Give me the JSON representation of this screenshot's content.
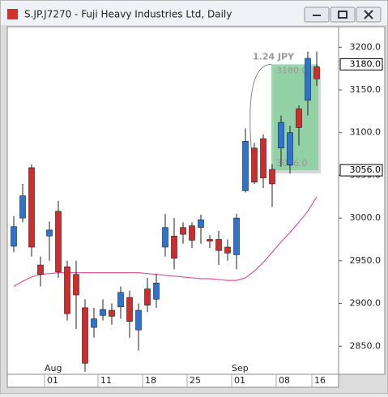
{
  "window": {
    "title": "S.JP.J7270 - Fuji Heavy Industries Ltd, Daily"
  },
  "chart_data": {
    "type": "candlestick",
    "categories": [
      null,
      null,
      null,
      null,
      "01",
      null,
      null,
      null,
      null,
      null,
      "11",
      null,
      null,
      null,
      null,
      "18",
      null,
      null,
      null,
      null,
      "25",
      null,
      null,
      null,
      null,
      "01",
      null,
      null,
      null,
      null,
      "08",
      null,
      null,
      null,
      "16"
    ],
    "months": [
      null,
      null,
      null,
      null,
      "Aug",
      null,
      null,
      null,
      null,
      null,
      null,
      null,
      null,
      null,
      null,
      null,
      null,
      null,
      null,
      null,
      null,
      null,
      null,
      null,
      null,
      "Sep",
      null,
      null,
      null,
      null,
      null,
      null,
      null,
      null,
      null
    ],
    "open": [
      2967,
      3000,
      3059,
      2945,
      2979,
      3008,
      2943,
      2934,
      2895,
      2872,
      2886,
      2892,
      2896,
      2907,
      2869,
      2917,
      2905,
      2966,
      2979,
      2989,
      2991,
      2989,
      2975,
      2975,
      2966,
      2957,
      3032,
      3082,
      3093,
      3057,
      3082,
      3062,
      3128,
      3138,
      3177
    ],
    "high": [
      3002,
      3040,
      3063,
      2955,
      2996,
      3020,
      2950,
      2950,
      2905,
      2895,
      2905,
      2900,
      2920,
      2915,
      2900,
      2930,
      2935,
      3005,
      3000,
      2995,
      2995,
      3004,
      2980,
      2985,
      2975,
      3005,
      3105,
      3088,
      3098,
      3063,
      3120,
      3108,
      3132,
      3195,
      3195
    ],
    "low": [
      2960,
      2995,
      2955,
      2920,
      2950,
      2930,
      2880,
      2870,
      2820,
      2860,
      2880,
      2875,
      2882,
      2860,
      2845,
      2890,
      2895,
      2955,
      2940,
      2970,
      2965,
      2970,
      2965,
      2945,
      2950,
      2940,
      3030,
      3040,
      3035,
      3013,
      3060,
      3052,
      3085,
      3120,
      3155
    ],
    "close": [
      2990,
      3026,
      2966,
      2934,
      2986,
      2937,
      2888,
      2910,
      2830,
      2882,
      2893,
      2885,
      2913,
      2879,
      2892,
      2898,
      2924,
      2989,
      2953,
      2981,
      2974,
      2998,
      2973,
      2962,
      2959,
      3000,
      3090,
      3042,
      3047,
      3040,
      3112,
      3100,
      3106,
      3187,
      3163
    ],
    "up_color": "#2a74d6",
    "down_color": "#d42a2a",
    "moving_average": {
      "color": "#e0559a",
      "values": [
        2920,
        2926,
        2931,
        2934,
        2935,
        2936,
        2936,
        2936,
        2936,
        2936,
        2936,
        2936,
        2936,
        2936,
        2936,
        2935,
        2934,
        2933,
        2932,
        2931,
        2930,
        2929,
        2929,
        2928,
        2927,
        2927,
        2930,
        2938,
        2948,
        2960,
        2972,
        2983,
        2995,
        3008,
        3025
      ]
    },
    "ylim": [
      2818,
      3224
    ],
    "yticks": [
      {
        "value": 2850,
        "label": "2850.0"
      },
      {
        "value": 2900,
        "label": "2900.0"
      },
      {
        "value": 2950,
        "label": "2950.0"
      },
      {
        "value": 3000,
        "label": "3000.0"
      },
      {
        "value": 3050,
        "label": "3050.0"
      },
      {
        "value": 3100,
        "label": "3100.0"
      },
      {
        "value": 3150,
        "label": "3150.0"
      },
      {
        "value": 3200,
        "label": "3200.0"
      }
    ],
    "price_markers": [
      {
        "value": 3180,
        "label": "3180.0"
      },
      {
        "value": 3056,
        "label": "3056.0"
      }
    ],
    "range_text": "1.24 JPY"
  }
}
